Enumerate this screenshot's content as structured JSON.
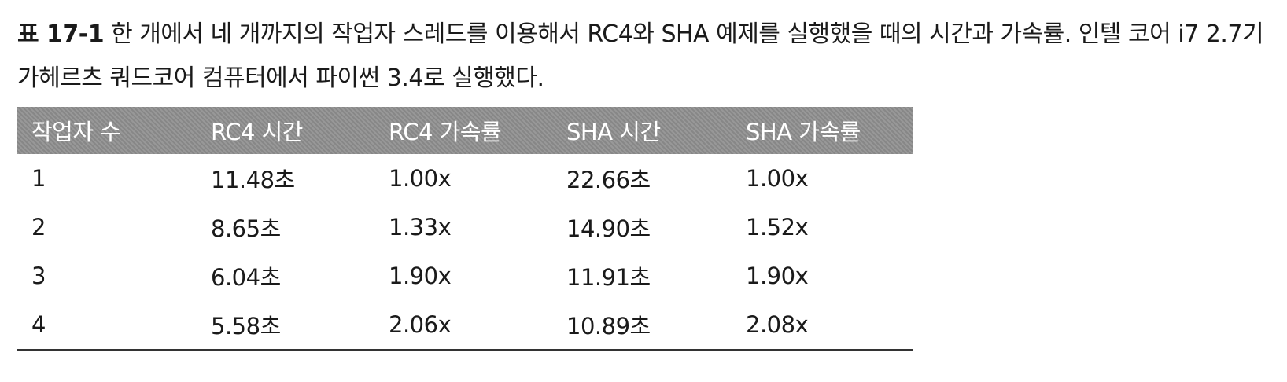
{
  "caption": {
    "table_number": "표 17-1",
    "text": "한 개에서 네 개까지의 작업자 스레드를 이용해서 RC4와 SHA 예제를 실행했을 때의 시간과 가속률. 인텔 코어 i7 2.7기가헤르츠 쿼드코어 컴퓨터에서 파이썬 3.4로 실행했다."
  },
  "table": {
    "headers": [
      "작업자 수",
      "RC4 시간",
      "RC4 가속률",
      "SHA 시간",
      "SHA 가속률"
    ],
    "rows": [
      [
        "1",
        "11.48초",
        "1.00x",
        "22.66초",
        "1.00x"
      ],
      [
        "2",
        "8.65초",
        "1.33x",
        "14.90초",
        "1.52x"
      ],
      [
        "3",
        "6.04초",
        "1.90x",
        "11.91초",
        "1.90x"
      ],
      [
        "4",
        "5.58초",
        "2.06x",
        "10.89초",
        "2.08x"
      ]
    ]
  }
}
